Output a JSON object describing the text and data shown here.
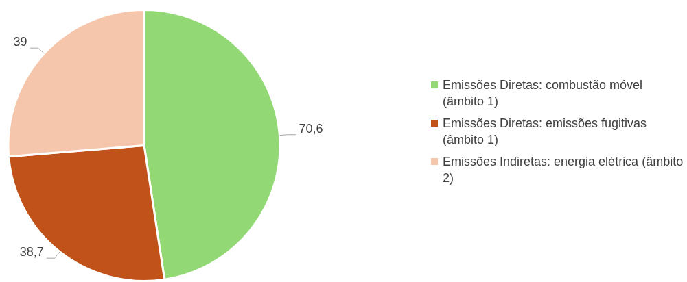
{
  "chart_data": {
    "type": "pie",
    "categories": [
      "Emissões Diretas: combustão móvel (âmbito 1)",
      "Emissões Diretas: emissões fugitivas (âmbito 1)",
      "Emissões Indiretas: energia elétrica (âmbito 2)"
    ],
    "values": [
      70.6,
      38.7,
      39
    ],
    "colors": [
      "#92d975",
      "#c0521a",
      "#f5c6ab"
    ],
    "value_labels": [
      "70,6",
      "38,7",
      "39"
    ],
    "legend": "right"
  }
}
